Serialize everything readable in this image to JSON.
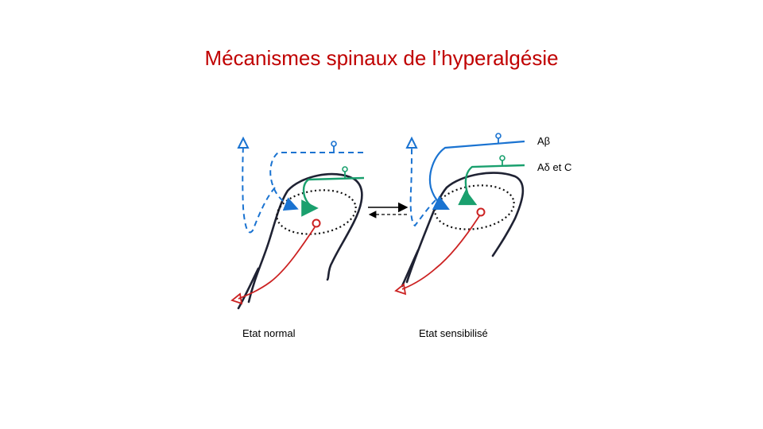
{
  "slide": {
    "title": "Mécanismes spinaux de l’hyperalgésie"
  },
  "diagram": {
    "fiber_labels": {
      "a_beta": "Aβ",
      "a_delta_c": "Aδ et C"
    },
    "panel_labels": {
      "normal": "Etat normal",
      "sensitized": "Etat sensibilisé"
    },
    "colors": {
      "a_beta": "#1a73d1",
      "a_delta_c": "#1aa06e",
      "nociceptive_output": "#cc2222",
      "spinal_outline": "#1f2233",
      "title": "#c00000"
    }
  }
}
